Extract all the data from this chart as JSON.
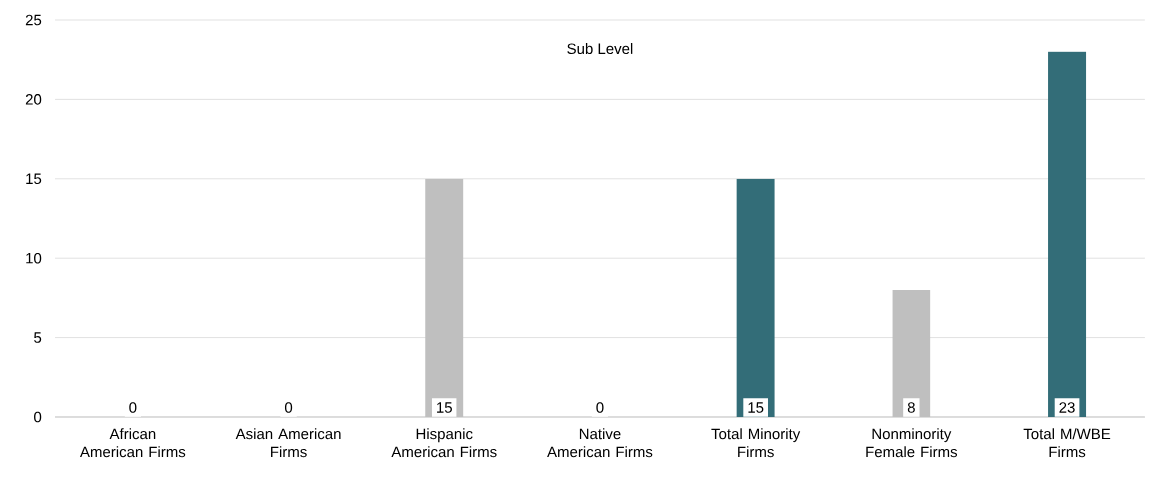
{
  "chart_data": {
    "type": "bar",
    "title": "Sub Level",
    "categories": [
      "African American Firms",
      "Asian American Firms",
      "Hispanic American Firms",
      "Native American Firms",
      "Total Minority Firms",
      "Nonminority Female Firms",
      "Total M/WBE Firms"
    ],
    "values": [
      0,
      0,
      15,
      0,
      15,
      8,
      23
    ],
    "colors": [
      "#bfbfbf",
      "#bfbfbf",
      "#bfbfbf",
      "#bfbfbf",
      "#336d78",
      "#bfbfbf",
      "#336d78"
    ],
    "ylim": [
      0,
      25
    ],
    "yticks": [
      0,
      5,
      10,
      15,
      20,
      25
    ],
    "grid": "y",
    "data_labels": true
  }
}
